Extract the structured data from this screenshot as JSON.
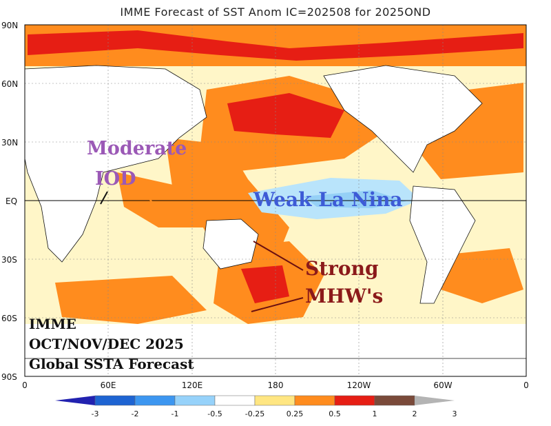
{
  "title": "IMME Forecast of SST Anom IC=202508 for 2025OND",
  "lat_labels": [
    "90N",
    "60N",
    "30N",
    "EQ",
    "30S",
    "60S",
    "90S"
  ],
  "lon_labels": [
    "0",
    "60E",
    "120E",
    "180",
    "120W",
    "60W",
    "0"
  ],
  "annotations": {
    "iod_line1": "Moderate",
    "iod_line2": "IOD",
    "la_nina": "Weak La Nina",
    "mhw_line1": "Strong",
    "mhw_line2": "MHW's"
  },
  "info_box": {
    "line1": "IMME",
    "line2": "OCT/NOV/DEC 2025",
    "line3": "Global SSTA Forecast"
  },
  "colorbar": {
    "labels": [
      "-3",
      "-2",
      "-1",
      "-0.5",
      "-0.25",
      "0.25",
      "0.5",
      "1",
      "2",
      "3"
    ],
    "colors": [
      "#2222b0",
      "#1e64d2",
      "#3c96f0",
      "#96d2fa",
      "#ffffff",
      "#ffe682",
      "#ff8c1e",
      "#e61e14",
      "#7a4a3a",
      "#b4b4b4"
    ]
  },
  "colors": {
    "land": "#ffffff",
    "warm_light": "#ffe682",
    "warm_mid": "#ff8c1e",
    "warm_strong": "#e61e14",
    "warm_extreme": "#7a4a3a",
    "cool_light": "#b9e4fb",
    "cool_mid": "#6ab8ef"
  }
}
